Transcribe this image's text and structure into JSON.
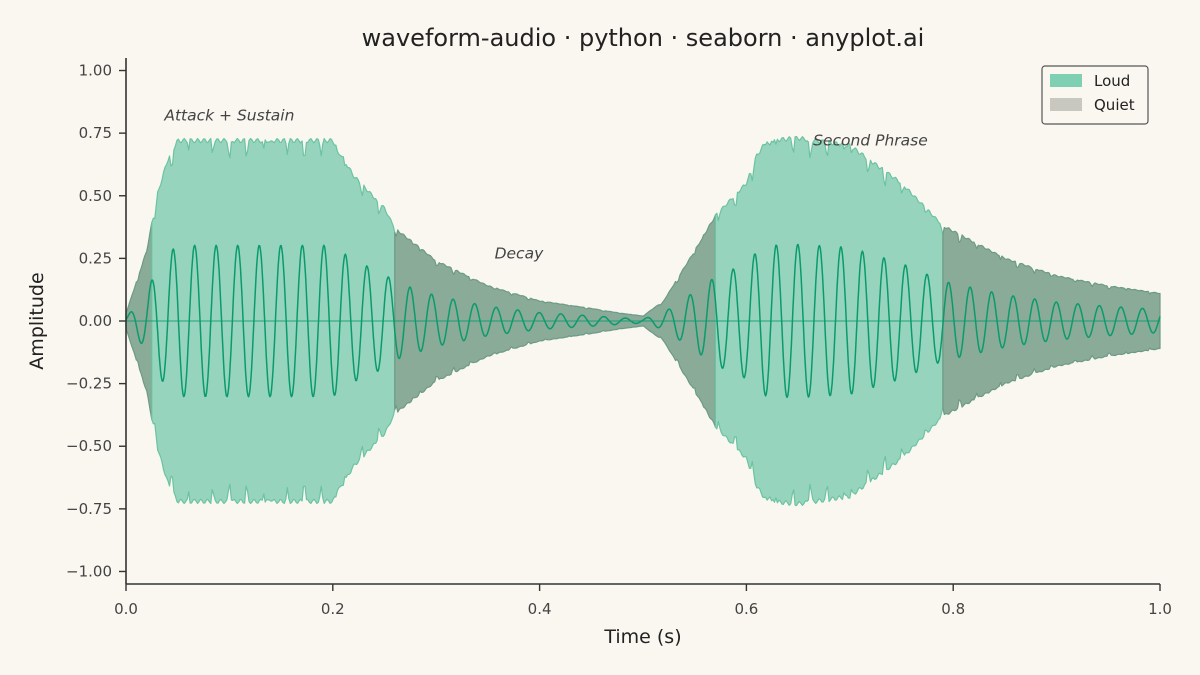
{
  "chart_data": {
    "type": "area",
    "title": "waveform-audio · python · seaborn · anyplot.ai",
    "xlabel": "Time (s)",
    "ylabel": "Amplitude",
    "xlim": [
      0.0,
      1.0
    ],
    "ylim": [
      -1.05,
      1.05
    ],
    "x_ticks": [
      0.0,
      0.2,
      0.4,
      0.6,
      0.8,
      1.0
    ],
    "x_tick_labels": [
      "0.0",
      "0.2",
      "0.4",
      "0.6",
      "0.8",
      "1.0"
    ],
    "y_ticks": [
      -1.0,
      -0.75,
      -0.5,
      -0.25,
      0.0,
      0.25,
      0.5,
      0.75,
      1.0
    ],
    "y_tick_labels": [
      "−1.00",
      "−0.75",
      "−0.50",
      "−0.25",
      "0.00",
      "0.25",
      "0.50",
      "0.75",
      "1.00"
    ],
    "grid": false,
    "legend_position": "top-right",
    "legend": [
      {
        "label": "Loud",
        "color": "#7fcfb2"
      },
      {
        "label": "Quiet",
        "color": "#c8c7c0"
      }
    ],
    "colors": {
      "loud_fill": "#96d4bd",
      "loud_edge": "#6cc3a2",
      "quiet_fill": "#89ab98",
      "quiet_edge": "#6d9a86",
      "waveform": "#0a9b6d",
      "axis": "#333333",
      "background": "#faf7f1"
    },
    "envelope": {
      "t": [
        0.0,
        0.02,
        0.03,
        0.04,
        0.05,
        0.2,
        0.21,
        0.22,
        0.25,
        0.26,
        0.3,
        0.35,
        0.4,
        0.45,
        0.48,
        0.5,
        0.52,
        0.55,
        0.57,
        0.6,
        0.61,
        0.62,
        0.65,
        0.7,
        0.75,
        0.79,
        0.85,
        0.9,
        0.95,
        1.0
      ],
      "amplitude": [
        0.03,
        0.28,
        0.5,
        0.64,
        0.72,
        0.72,
        0.65,
        0.58,
        0.45,
        0.37,
        0.24,
        0.14,
        0.08,
        0.05,
        0.03,
        0.02,
        0.08,
        0.28,
        0.42,
        0.55,
        0.66,
        0.72,
        0.73,
        0.7,
        0.55,
        0.38,
        0.25,
        0.18,
        0.14,
        0.11
      ]
    },
    "loud_regions": [
      [
        0.025,
        0.26
      ],
      [
        0.57,
        0.79
      ]
    ],
    "waveform": {
      "frequency_hz": 48,
      "inner_amplitude_ratio": 0.42
    },
    "annotations": [
      {
        "text": "Attack + Sustain",
        "x": 0.1,
        "y": 0.8
      },
      {
        "text": "Decay",
        "x": 0.38,
        "y": 0.25
      },
      {
        "text": "Second Phrase",
        "x": 0.72,
        "y": 0.7
      }
    ]
  }
}
